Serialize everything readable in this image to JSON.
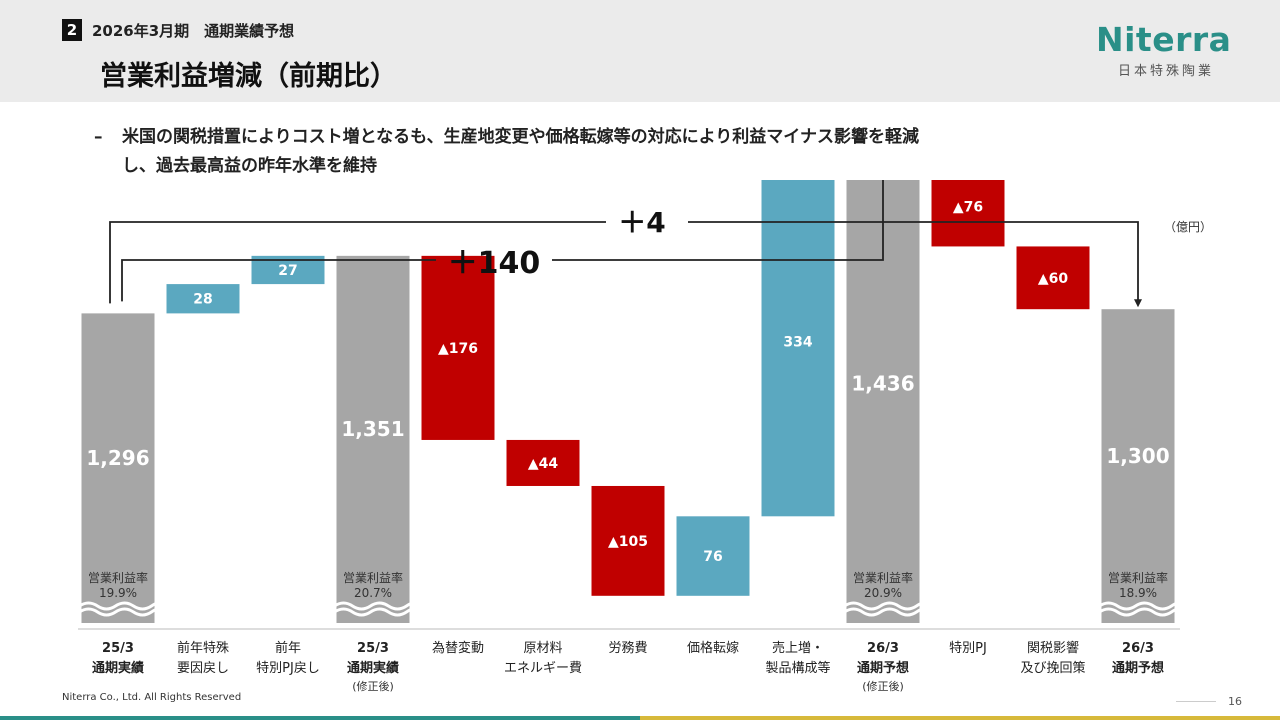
{
  "header": {
    "section_number": "2",
    "subtitle": "2026年3月期　通期業績予想",
    "title": "営業利益増減（前期比）"
  },
  "logo": {
    "wordmark": "Niterra",
    "company_jp": "日本特殊陶業"
  },
  "bullet": {
    "dash": "–",
    "line1": "米国の関税措置によりコスト増となるも、生産地変更や価格転嫁等の対応により利益マイナス影響を軽減",
    "line2": "し、過去最高益の昨年水準を維持"
  },
  "unit_label": "（億円）",
  "footer": {
    "copyright": "Niterra Co., Ltd. All Rights Reserved",
    "page": "16"
  },
  "colors": {
    "total": "#a6a6a6",
    "increase": "#5ba8c0",
    "decrease": "#c00000",
    "brand": "#2a8f88"
  },
  "chart_data": {
    "type": "bar",
    "subtype": "waterfall",
    "unit": "（億円）",
    "bars": [
      {
        "kind": "total",
        "value": 1296,
        "value_label": "1,296",
        "label_lines": [
          "25/3",
          "通期実績"
        ],
        "bold": true,
        "note": "",
        "margin_label": "営業利益率",
        "margin_value": "19.9%"
      },
      {
        "kind": "increase",
        "value": 28,
        "value_label": "28",
        "label_lines": [
          "前年特殊",
          "要因戻し"
        ],
        "bold": false,
        "note": ""
      },
      {
        "kind": "increase",
        "value": 27,
        "value_label": "27",
        "label_lines": [
          "前年",
          "特別PJ戻し"
        ],
        "bold": false,
        "note": ""
      },
      {
        "kind": "total",
        "value": 1351,
        "value_label": "1,351",
        "label_lines": [
          "25/3",
          "通期実績"
        ],
        "bold": true,
        "note": "(修正後)",
        "margin_label": "営業利益率",
        "margin_value": "20.7%"
      },
      {
        "kind": "decrease",
        "value": -176,
        "value_label": "▲176",
        "label_lines": [
          "為替変動"
        ],
        "bold": false,
        "note": ""
      },
      {
        "kind": "decrease",
        "value": -44,
        "value_label": "▲44",
        "label_lines": [
          "原材料",
          "エネルギー費"
        ],
        "bold": false,
        "note": ""
      },
      {
        "kind": "decrease",
        "value": -105,
        "value_label": "▲105",
        "label_lines": [
          "労務費"
        ],
        "bold": false,
        "note": ""
      },
      {
        "kind": "increase",
        "value": 76,
        "value_label": "76",
        "label_lines": [
          "価格転嫁"
        ],
        "bold": false,
        "note": ""
      },
      {
        "kind": "increase",
        "value": 334,
        "value_label": "334",
        "label_lines": [
          "売上増・",
          "製品構成等"
        ],
        "bold": false,
        "note": ""
      },
      {
        "kind": "total",
        "value": 1436,
        "value_label": "1,436",
        "label_lines": [
          "26/3",
          "通期予想"
        ],
        "bold": true,
        "note": "(修正後)",
        "margin_label": "営業利益率",
        "margin_value": "20.9%"
      },
      {
        "kind": "decrease",
        "value": -76,
        "value_label": "▲76",
        "label_lines": [
          "特別PJ"
        ],
        "bold": false,
        "note": ""
      },
      {
        "kind": "decrease",
        "value": -60,
        "value_label": "▲60",
        "label_lines": [
          "関税影響",
          "及び挽回策"
        ],
        "bold": false,
        "note": ""
      },
      {
        "kind": "total",
        "value": 1300,
        "value_label": "1,300",
        "label_lines": [
          "26/3",
          "通期予想"
        ],
        "bold": true,
        "note": "",
        "margin_label": "営業利益率",
        "margin_value": "18.9%"
      }
    ],
    "brackets": [
      {
        "from_bar": 0,
        "to_bar": 12,
        "label": "＋4"
      },
      {
        "from_bar": 0,
        "to_bar": 9,
        "label": "＋140"
      }
    ],
    "axis_break": true,
    "grid": false,
    "legend": "none"
  }
}
